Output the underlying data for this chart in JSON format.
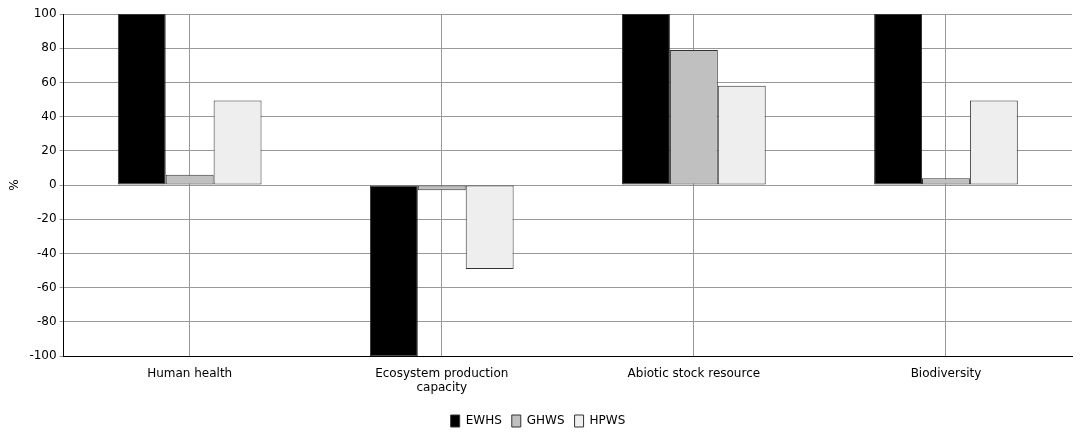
{
  "chart_data": {
    "type": "bar",
    "ylabel": "%",
    "categories": [
      "Human health",
      "Ecosystem production capacity",
      "Abiotic stock resource",
      "Biodiversity"
    ],
    "series": [
      {
        "name": "EWHS",
        "color": "#000000",
        "values": [
          100,
          -100,
          100,
          100
        ]
      },
      {
        "name": "GHWS",
        "color": "#c0c0c0",
        "values": [
          6,
          -3,
          79,
          4
        ]
      },
      {
        "name": "HPWS",
        "color": "#eeeeee",
        "values": [
          49.5,
          -49,
          58,
          49.5
        ]
      }
    ],
    "ylim": [
      -100,
      100
    ],
    "yticks": [
      -100,
      -80,
      -60,
      -40,
      -20,
      0,
      20,
      40,
      60,
      80,
      100
    ],
    "grid": true,
    "legend": "bottom"
  }
}
